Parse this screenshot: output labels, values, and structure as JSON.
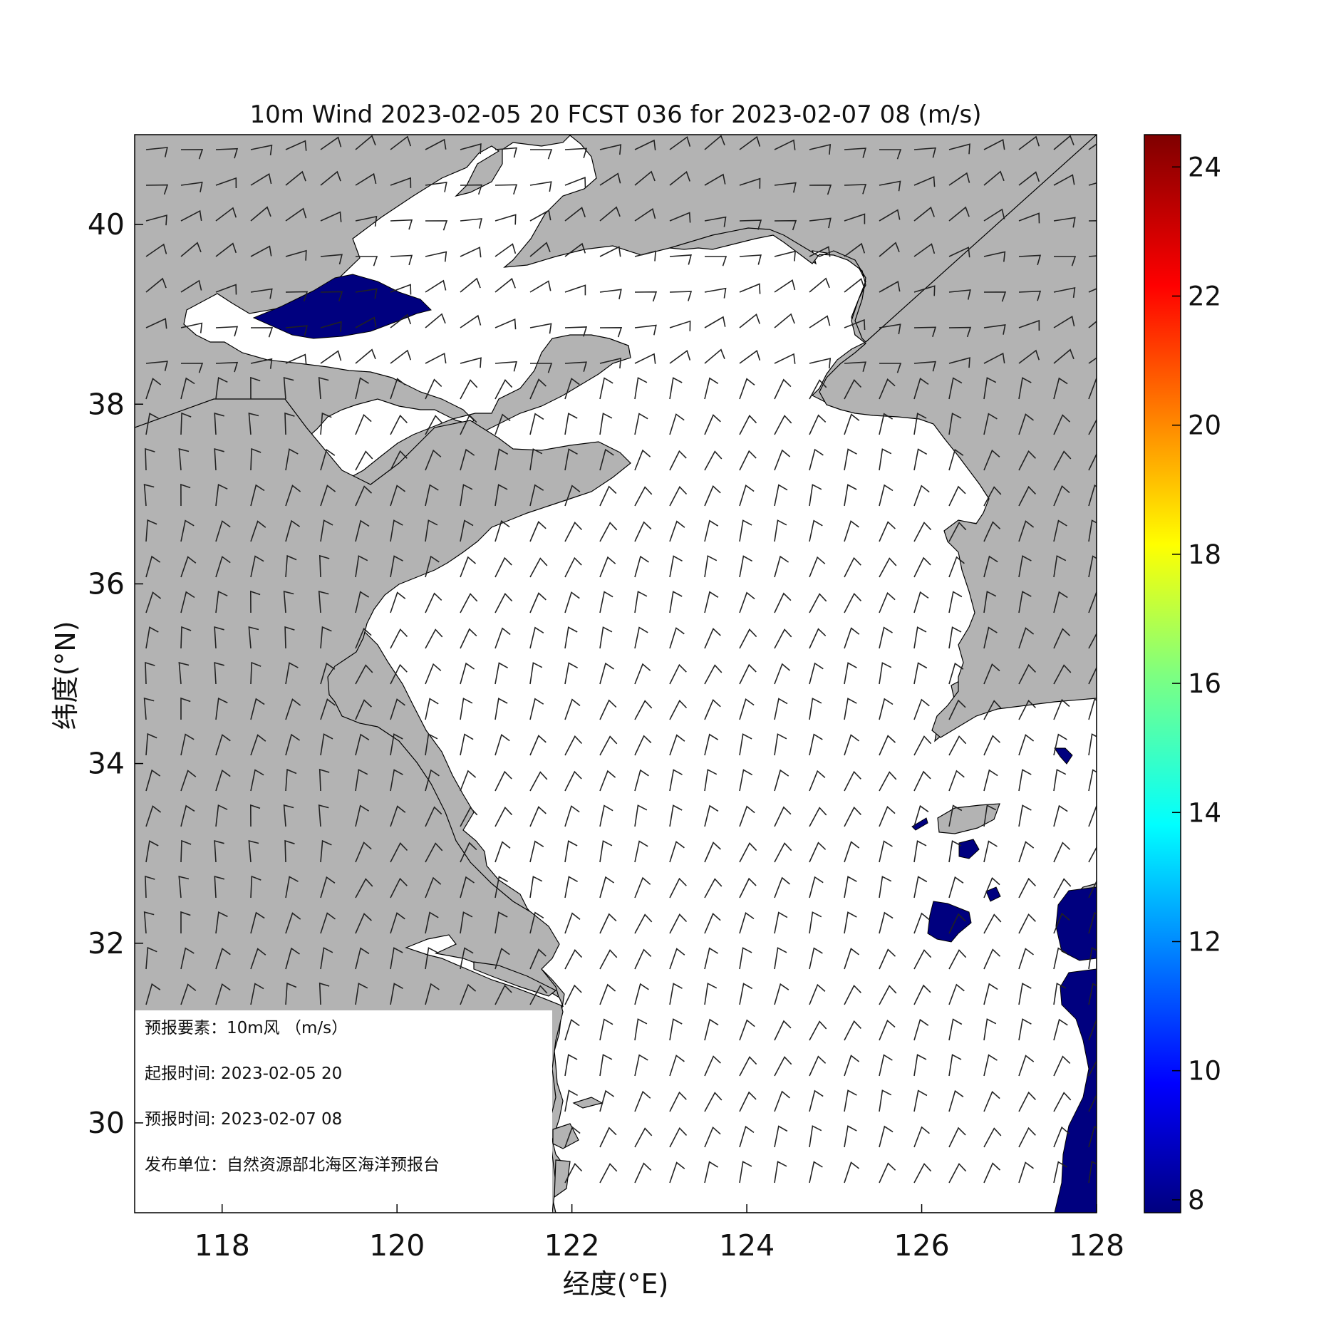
{
  "title": "10m Wind 2023-02-05 20 FCST 036 for 2023-02-07 08 (m/s)",
  "x_axis": {
    "label": "经度(°E)",
    "range": [
      117,
      128
    ],
    "ticks": [
      118,
      120,
      122,
      124,
      126,
      128
    ],
    "tick_labels": [
      "118",
      "120",
      "122",
      "124",
      "126",
      "128"
    ]
  },
  "y_axis": {
    "label": "纬度(°N)",
    "range": [
      29,
      41
    ],
    "ticks": [
      30,
      32,
      34,
      36,
      38,
      40
    ],
    "tick_labels": [
      "30",
      "32",
      "34",
      "36",
      "38",
      "40"
    ]
  },
  "colorbar": {
    "range": [
      7.8,
      24.5
    ],
    "ticks": [
      8,
      10,
      12,
      14,
      16,
      18,
      20,
      22,
      24
    ],
    "tick_labels": [
      "8",
      "10",
      "12",
      "14",
      "16",
      "18",
      "20",
      "22",
      "24"
    ],
    "colormap": "jet"
  },
  "info_box": {
    "element": "预报要素：10m风 （m/s）",
    "issue_time": "起报时间: 2023-02-05 20",
    "valid_time": "预报时间: 2023-02-07 08",
    "publisher": "发布单位：自然资源部北海区海洋预报台"
  },
  "colors": {
    "land": "#b3b3b3",
    "sea": "#ffffff",
    "wind_8ms": "#00007f",
    "barb": "#222222",
    "frame": "#000000"
  },
  "chart_data": {
    "type": "wind-barb-map",
    "variable": "10m Wind",
    "units": "m/s",
    "issue_time": "2023-02-05 20",
    "forecast_hour": "036",
    "valid_time": "2023-02-07 08",
    "lon_range": [
      117,
      128
    ],
    "lat_range": [
      29,
      41
    ],
    "regions_at_or_above_8ms": [
      {
        "area": "Bohai Sea (Bohai Bay mouth)",
        "lon": [
          118.4,
          120.4
        ],
        "lat": [
          38.8,
          39.5
        ]
      },
      {
        "area": "East China Sea east edge",
        "lon": [
          127.4,
          128
        ],
        "lat": [
          29,
          31.5
        ]
      },
      {
        "area": "Cheju (Jeju) Island surroundings",
        "lon": [
          126.1,
          126.6
        ],
        "lat": [
          32,
          32.5
        ]
      }
    ],
    "prevailing_wind": {
      "sea": "northwesterly",
      "land": "northerly to northwesterly"
    }
  }
}
